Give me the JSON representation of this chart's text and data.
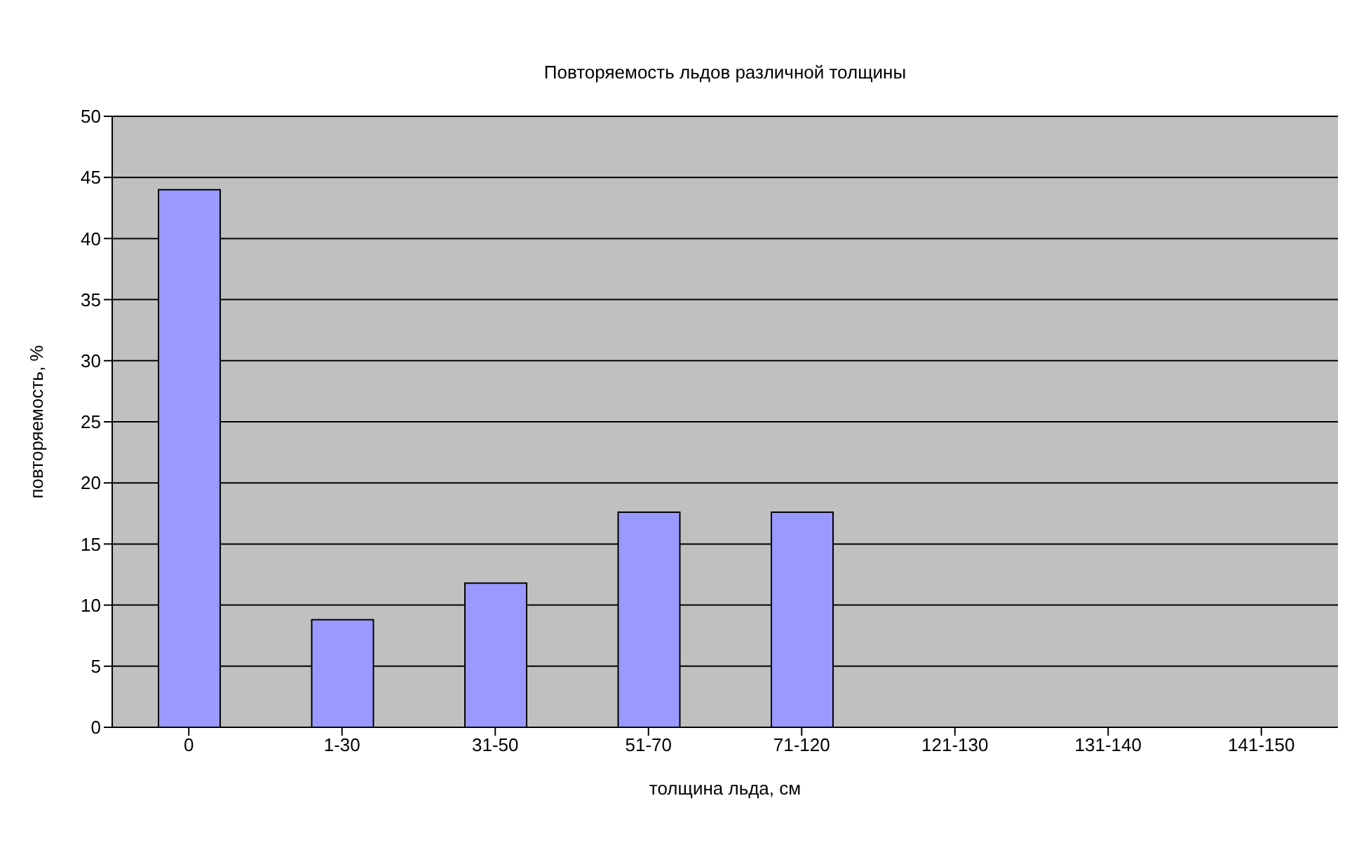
{
  "chart_data": {
    "type": "bar",
    "title": "Повторяемость льдов различной толщины",
    "xlabel": "толщина льда, см",
    "ylabel": "повторяемость, %",
    "categories": [
      "0",
      "1-30",
      "31-50",
      "51-70",
      "71-120",
      "121-130",
      "131-140",
      "141-150"
    ],
    "values": [
      44,
      8.8,
      11.8,
      17.6,
      17.6,
      0,
      0,
      0
    ],
    "color": "#9999ff",
    "ylim": [
      0,
      50
    ],
    "yticks": [
      0,
      5,
      10,
      15,
      20,
      25,
      30,
      35,
      40,
      45,
      50
    ],
    "grid": "y",
    "legend": false
  }
}
